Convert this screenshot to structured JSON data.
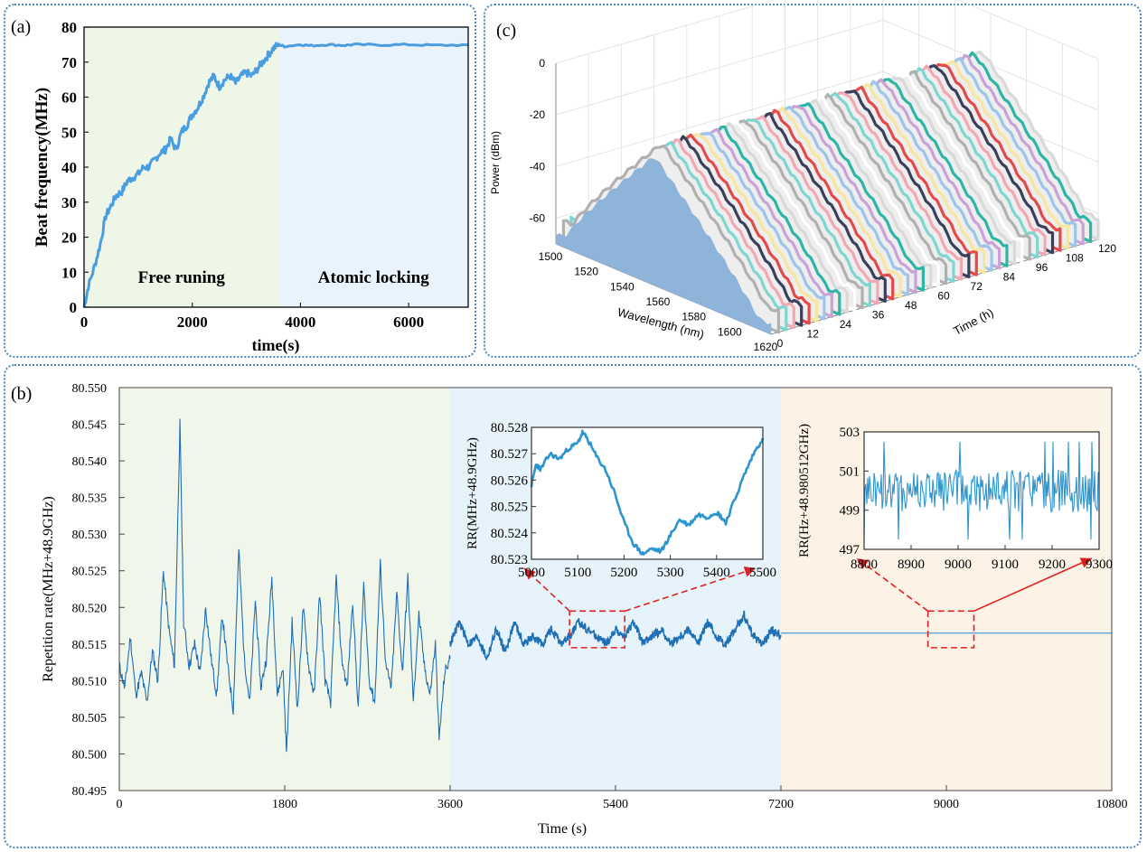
{
  "panels": {
    "a": "(a)",
    "b": "(b)",
    "c": "(c)"
  },
  "chart_data": [
    {
      "id": "a",
      "type": "line",
      "title": "",
      "xlabel": "time(s)",
      "ylabel": "Beat frequency(MHz)",
      "xlim": [
        0,
        7100
      ],
      "ylim": [
        0,
        80
      ],
      "xticks": [
        0,
        2000,
        4000,
        6000
      ],
      "yticks": [
        0,
        10,
        20,
        30,
        40,
        50,
        60,
        70,
        80
      ],
      "regions": [
        {
          "label": "Free runing",
          "x": [
            0,
            3600
          ],
          "color": "#eef6e8"
        },
        {
          "label": "Atomic locking",
          "x": [
            3600,
            7100
          ],
          "color": "#e9f3fb"
        }
      ],
      "series": [
        {
          "color": "#4a9de0",
          "x": [
            0,
            80,
            200,
            300,
            400,
            500,
            600,
            700,
            800,
            900,
            1000,
            1100,
            1200,
            1300,
            1400,
            1500,
            1600,
            1700,
            1800,
            1900,
            2000,
            2100,
            2200,
            2300,
            2400,
            2500,
            2600,
            2700,
            2800,
            2900,
            3000,
            3100,
            3200,
            3300,
            3400,
            3500,
            3600,
            3700,
            4000,
            4200,
            4500,
            4800,
            5000,
            5500,
            6000,
            6500,
            7100
          ],
          "y": [
            0,
            6,
            12,
            18,
            26,
            29,
            32,
            33,
            36,
            37,
            38,
            40,
            40,
            42,
            44,
            45,
            48,
            45,
            50,
            52,
            55,
            57,
            60,
            64,
            66,
            63,
            65,
            66,
            64,
            66,
            67,
            66,
            68,
            70,
            72,
            74,
            75,
            74.5,
            75,
            74.7,
            75,
            74.8,
            75,
            74.9,
            75,
            74.8,
            74.9
          ]
        }
      ]
    },
    {
      "id": "b",
      "type": "line",
      "title": "",
      "xlabel": "Time (s)",
      "ylabel": "Repetition rate(MHz+48.9GHz)",
      "xlim": [
        0,
        10800
      ],
      "ylim": [
        80.495,
        80.55
      ],
      "xticks": [
        0,
        1800,
        3600,
        5400,
        7200,
        9000,
        10800
      ],
      "yticks": [
        "80.495",
        "80.500",
        "80.505",
        "80.510",
        "80.515",
        "80.520",
        "80.525",
        "80.530",
        "80.535",
        "80.540",
        "80.545",
        "80.550"
      ],
      "regions": [
        {
          "x": [
            0,
            3600
          ],
          "color": "#f0f7ea"
        },
        {
          "x": [
            3600,
            7200
          ],
          "color": "#e6f3fb"
        },
        {
          "x": [
            7200,
            10800
          ],
          "color": "#fdf2e6"
        }
      ],
      "zoom_boxes": [
        {
          "x": [
            4900,
            5500
          ],
          "y": [
            80.5145,
            80.5195
          ]
        },
        {
          "x": [
            8800,
            9300
          ],
          "y": [
            80.5145,
            80.5195
          ]
        }
      ],
      "series": [
        {
          "color": "#1f6fb5",
          "x": [
            0,
            60,
            120,
            180,
            240,
            300,
            360,
            420,
            480,
            540,
            600,
            660,
            700,
            760,
            820,
            880,
            940,
            1000,
            1060,
            1120,
            1180,
            1240,
            1300,
            1360,
            1420,
            1480,
            1540,
            1600,
            1660,
            1720,
            1780,
            1820,
            1880,
            1940,
            2000,
            2060,
            2120,
            2180,
            2240,
            2300,
            2360,
            2420,
            2480,
            2540,
            2600,
            2660,
            2720,
            2780,
            2840,
            2900,
            2960,
            3020,
            3080,
            3140,
            3200,
            3260,
            3320,
            3380,
            3440,
            3480,
            3540,
            3600
          ],
          "y": [
            80.512,
            80.509,
            80.516,
            80.508,
            80.511,
            80.507,
            80.514,
            80.51,
            80.525,
            80.517,
            80.512,
            80.545,
            80.518,
            80.512,
            80.515,
            80.511,
            80.52,
            80.513,
            80.508,
            80.519,
            80.512,
            80.506,
            80.528,
            80.513,
            80.507,
            80.521,
            80.509,
            80.513,
            80.524,
            80.508,
            80.512,
            80.5,
            80.518,
            80.506,
            80.52,
            80.512,
            80.508,
            80.522,
            80.51,
            80.507,
            80.524,
            80.513,
            80.509,
            80.521,
            80.506,
            80.523,
            80.51,
            80.507,
            80.526,
            80.512,
            80.509,
            80.522,
            80.511,
            80.524,
            80.507,
            80.519,
            80.512,
            80.508,
            80.515,
            80.502,
            80.511,
            80.513
          ]
        },
        {
          "color": "#1f6fb5",
          "x": [
            3600,
            3700,
            3800,
            3900,
            4000,
            4100,
            4200,
            4300,
            4400,
            4500,
            4600,
            4700,
            4800,
            4900,
            5000,
            5100,
            5200,
            5300,
            5400,
            5500,
            5600,
            5700,
            5800,
            5900,
            6000,
            6100,
            6200,
            6300,
            6400,
            6500,
            6600,
            6700,
            6800,
            6900,
            7000,
            7100,
            7200
          ],
          "y": [
            80.515,
            80.518,
            80.515,
            80.516,
            80.513,
            80.517,
            80.514,
            80.518,
            80.515,
            80.516,
            80.515,
            80.517,
            80.515,
            80.516,
            80.518,
            80.517,
            80.516,
            80.515,
            80.517,
            80.516,
            80.518,
            80.515,
            80.516,
            80.517,
            80.515,
            80.516,
            80.517,
            80.515,
            80.518,
            80.516,
            80.515,
            80.517,
            80.519,
            80.516,
            80.515,
            80.517,
            80.516
          ]
        },
        {
          "color": "#3d95d8",
          "x": [
            7200,
            10800
          ],
          "y": [
            80.5165,
            80.5165
          ]
        }
      ]
    },
    {
      "id": "b-inset-1",
      "type": "line",
      "title": "",
      "xlabel": "",
      "ylabel": "RR(MHz+48.9GHz)",
      "xlim": [
        5000,
        5500
      ],
      "ylim": [
        80.523,
        80.528
      ],
      "xticks": [
        5000,
        5100,
        5200,
        5300,
        5400,
        5500
      ],
      "yticks": [
        "80.523",
        "80.524",
        "80.525",
        "80.526",
        "80.527",
        "80.528"
      ],
      "series": [
        {
          "color": "#2c95cf",
          "x": [
            5000,
            5010,
            5020,
            5040,
            5060,
            5080,
            5100,
            5110,
            5120,
            5140,
            5160,
            5180,
            5200,
            5220,
            5240,
            5260,
            5280,
            5300,
            5320,
            5340,
            5360,
            5380,
            5400,
            5410,
            5420,
            5440,
            5460,
            5480,
            5500
          ],
          "y": [
            80.5258,
            80.5266,
            80.5264,
            80.527,
            80.5268,
            80.5272,
            80.5274,
            80.5278,
            80.5276,
            80.5269,
            80.5264,
            80.5255,
            80.5244,
            80.5236,
            80.5232,
            80.5234,
            80.5233,
            80.5239,
            80.5245,
            80.5243,
            80.5247,
            80.5246,
            80.5248,
            80.5246,
            80.5244,
            80.5253,
            80.5262,
            80.527,
            80.5276
          ]
        }
      ]
    },
    {
      "id": "b-inset-2",
      "type": "line",
      "title": "",
      "xlabel": "",
      "ylabel": "RR(Hz+48.980512GHz)",
      "xlim": [
        8800,
        9300
      ],
      "ylim": [
        497,
        503
      ],
      "xticks": [
        8800,
        8900,
        9000,
        9100,
        9200,
        9300
      ],
      "yticks": [
        497,
        499,
        501,
        503
      ],
      "series": [
        {
          "color": "#2c95cf",
          "noise": {
            "mean": 500,
            "amplitude": 1.1,
            "points": 260
          },
          "x": [],
          "y": []
        }
      ]
    },
    {
      "id": "c",
      "type": "area",
      "title": "",
      "xlabel": "Wavelength (nm)",
      "ylabel": "Power (dBm)",
      "zlabel": "Time (h)",
      "xlim": [
        1500,
        1620
      ],
      "ylim": [
        -70,
        0
      ],
      "zlim": [
        0,
        120
      ],
      "xticks": [
        1500,
        1520,
        1540,
        1560,
        1580,
        1600,
        1620
      ],
      "yticks": [
        0,
        -20,
        -40,
        -60
      ],
      "zticks": [
        0,
        12,
        24,
        36,
        48,
        60,
        72,
        84,
        96,
        108,
        120
      ],
      "series_count": 44,
      "series_colors": [
        "#8fb4d9",
        "#ffffff",
        "#b0b0b0",
        "#7fd6d0",
        "#f2a7b5",
        "#3a3f5c",
        "#e34a4a",
        "#f5e6a0",
        "#9ec5e8",
        "#c9a2d6",
        "#2fb5a6",
        "#d9d9d9"
      ]
    }
  ]
}
